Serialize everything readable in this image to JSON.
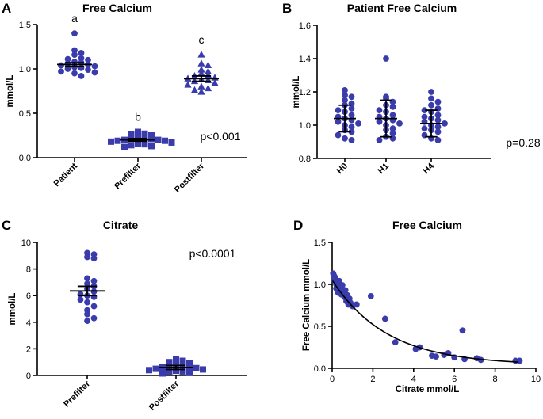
{
  "colors": {
    "marker": "#3a3cab",
    "axis": "#000000"
  },
  "chart_data": [
    {
      "panel": "A",
      "type": "scatter",
      "title": "Free Calcium",
      "ylabel": "mmol/L",
      "ylim": [
        0,
        1.5
      ],
      "yticks": [
        "0.0",
        "0.5",
        "1.0",
        "1.5"
      ],
      "categories": [
        "Patient",
        "Prefilter",
        "Postfilter"
      ],
      "markers": [
        "circle",
        "square",
        "triangle"
      ],
      "group_letters": [
        "a",
        "b",
        "c"
      ],
      "annotation": "p<0.001",
      "series": [
        {
          "name": "Patient",
          "values": [
            1.4,
            1.21,
            1.18,
            1.16,
            1.12,
            1.11,
            1.1,
            1.08,
            1.07,
            1.06,
            1.05,
            1.04,
            1.03,
            1.02,
            1.01,
            1.0,
            0.99,
            0.97,
            0.96,
            0.95,
            0.92
          ],
          "center": 1.05,
          "err": [
            1.03,
            1.07
          ]
        },
        {
          "name": "Prefilter",
          "values": [
            0.29,
            0.27,
            0.26,
            0.25,
            0.24,
            0.23,
            0.22,
            0.21,
            0.2,
            0.2,
            0.19,
            0.19,
            0.18,
            0.17,
            0.16,
            0.15,
            0.14,
            0.13,
            0.12
          ],
          "center": 0.2,
          "err": [
            0.185,
            0.215
          ]
        },
        {
          "name": "Postfilter",
          "values": [
            1.16,
            1.06,
            1.04,
            0.99,
            0.97,
            0.95,
            0.93,
            0.92,
            0.9,
            0.89,
            0.88,
            0.87,
            0.86,
            0.84,
            0.82,
            0.8,
            0.78,
            0.76,
            0.74
          ],
          "center": 0.89,
          "err": [
            0.86,
            0.92
          ]
        }
      ]
    },
    {
      "panel": "B",
      "type": "scatter",
      "title": "Patient Free Calcium",
      "ylabel": "mmol/L",
      "ylim": [
        0.8,
        1.6
      ],
      "yticks": [
        "0.8",
        "1.0",
        "1.2",
        "1.4",
        "1.6"
      ],
      "categories": [
        "H0",
        "H1",
        "H4"
      ],
      "markers": [
        "circle",
        "circle",
        "circle"
      ],
      "annotation": "p=0.28",
      "series": [
        {
          "name": "H0",
          "values": [
            1.21,
            1.18,
            1.17,
            1.15,
            1.13,
            1.12,
            1.1,
            1.09,
            1.08,
            1.06,
            1.05,
            1.04,
            1.03,
            1.02,
            1.01,
            1.0,
            0.99,
            0.97,
            0.96,
            0.94,
            0.92,
            0.91
          ],
          "center": 1.04,
          "err": [
            0.96,
            1.12
          ]
        },
        {
          "name": "H1",
          "values": [
            1.4,
            1.17,
            1.16,
            1.14,
            1.12,
            1.11,
            1.09,
            1.08,
            1.06,
            1.05,
            1.04,
            1.03,
            1.02,
            1.01,
            1.0,
            0.98,
            0.97,
            0.95,
            0.93,
            0.92,
            0.91
          ],
          "center": 1.04,
          "err": [
            0.93,
            1.15
          ]
        },
        {
          "name": "H4",
          "values": [
            1.2,
            1.16,
            1.14,
            1.12,
            1.1,
            1.09,
            1.08,
            1.06,
            1.05,
            1.04,
            1.03,
            1.02,
            1.01,
            1.0,
            0.99,
            0.98,
            0.97,
            0.96,
            0.94,
            0.92,
            0.91
          ],
          "center": 1.01,
          "err": [
            0.93,
            1.09
          ]
        }
      ]
    },
    {
      "panel": "C",
      "type": "scatter",
      "title": "Citrate",
      "ylabel": "mmol/L",
      "ylim": [
        0,
        10
      ],
      "yticks": [
        "0",
        "2",
        "4",
        "6",
        "8",
        "10"
      ],
      "categories": [
        "Prefilter",
        "Postfilter"
      ],
      "markers": [
        "circle",
        "square"
      ],
      "annotation": "p<0.0001",
      "series": [
        {
          "name": "Prefilter",
          "values": [
            9.2,
            9.1,
            8.9,
            8.8,
            7.3,
            7.1,
            6.9,
            6.7,
            6.5,
            6.3,
            6.1,
            6.0,
            5.9,
            5.7,
            5.5,
            5.2,
            4.9,
            4.6,
            4.3,
            4.1
          ],
          "center": 6.35,
          "err": [
            6.0,
            6.7
          ]
        },
        {
          "name": "Postfilter",
          "values": [
            1.2,
            1.1,
            1.0,
            0.9,
            0.8,
            0.75,
            0.7,
            0.65,
            0.6,
            0.55,
            0.5,
            0.45,
            0.4,
            0.35,
            0.3,
            0.25,
            0.2,
            0.15
          ],
          "center": 0.6,
          "err": [
            0.45,
            0.75
          ]
        }
      ]
    },
    {
      "panel": "D",
      "type": "scatter",
      "title": "Free Calcium",
      "xlabel": "Citrate mmol/L",
      "ylabel": "Free Calcium mmol/L",
      "xlim": [
        0,
        10
      ],
      "ylim": [
        0,
        1.5
      ],
      "xticks": [
        "0",
        "2",
        "4",
        "6",
        "8",
        "10"
      ],
      "yticks": [
        "0.0",
        "0.5",
        "1.0",
        "1.5"
      ],
      "points": [
        [
          0.05,
          1.13
        ],
        [
          0.1,
          1.1
        ],
        [
          0.1,
          1.05
        ],
        [
          0.15,
          1.08
        ],
        [
          0.2,
          1.0
        ],
        [
          0.2,
          0.95
        ],
        [
          0.25,
          1.02
        ],
        [
          0.3,
          0.97
        ],
        [
          0.3,
          0.9
        ],
        [
          0.35,
          1.04
        ],
        [
          0.4,
          0.94
        ],
        [
          0.45,
          0.88
        ],
        [
          0.5,
          0.99
        ],
        [
          0.55,
          0.91
        ],
        [
          0.6,
          0.85
        ],
        [
          0.65,
          0.93
        ],
        [
          0.7,
          0.8
        ],
        [
          0.75,
          0.87
        ],
        [
          0.8,
          0.76
        ],
        [
          0.85,
          0.83
        ],
        [
          0.9,
          0.78
        ],
        [
          1.0,
          0.74
        ],
        [
          1.2,
          0.76
        ],
        [
          1.9,
          0.86
        ],
        [
          2.6,
          0.59
        ],
        [
          3.1,
          0.31
        ],
        [
          4.1,
          0.23
        ],
        [
          4.3,
          0.25
        ],
        [
          4.9,
          0.15
        ],
        [
          5.1,
          0.14
        ],
        [
          5.5,
          0.16
        ],
        [
          5.7,
          0.18
        ],
        [
          6.0,
          0.13
        ],
        [
          6.4,
          0.45
        ],
        [
          6.5,
          0.11
        ],
        [
          7.1,
          0.12
        ],
        [
          7.3,
          0.1
        ],
        [
          9.0,
          0.09
        ],
        [
          9.2,
          0.09
        ]
      ],
      "fit": {
        "model": "exponential decay",
        "y0": 1.05,
        "plateau": 0.04,
        "k": 0.37
      }
    }
  ]
}
